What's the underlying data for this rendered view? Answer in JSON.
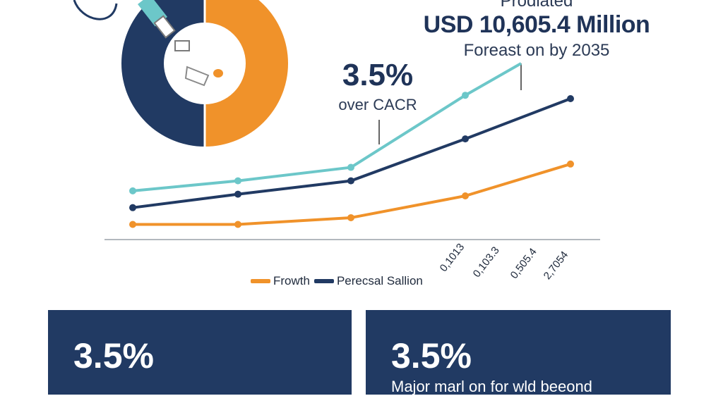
{
  "headline": {
    "top_text": "Prodiated",
    "value_text": "USD 10,605.4 Million",
    "sub_text": "Foreast on by 2035"
  },
  "cagr": {
    "value": "3.5%",
    "label": "over CACR"
  },
  "legend": {
    "items": [
      {
        "label": "Frowth",
        "color": "#f0922a"
      },
      {
        "label": "Perecsal Sallion",
        "color": "#213a63"
      }
    ]
  },
  "cards": [
    {
      "value": "3.5%",
      "text": ""
    },
    {
      "value": "3.5%",
      "text": "Major marl on for wld beeond"
    }
  ],
  "donut": {
    "slices": [
      {
        "name": "orange",
        "share": 0.5,
        "color": "#f0922a"
      },
      {
        "name": "navy",
        "share": 0.5,
        "color": "#213a63"
      }
    ]
  },
  "chart_data": {
    "type": "line",
    "x": [
      1,
      2,
      3,
      4,
      5
    ],
    "tick_labels": [
      "0,1013",
      "0,103.3",
      "0,505.4",
      "2,7054"
    ],
    "ylim": [
      0,
      100
    ],
    "series": [
      {
        "color": "#6cc7c9",
        "values": [
          24,
          30,
          38,
          81,
          100
        ]
      },
      {
        "color": "#213a63",
        "values": [
          14,
          22,
          30,
          55,
          79
        ]
      },
      {
        "color": "#f0922a",
        "values": [
          4,
          4,
          8,
          21,
          40
        ]
      }
    ]
  }
}
